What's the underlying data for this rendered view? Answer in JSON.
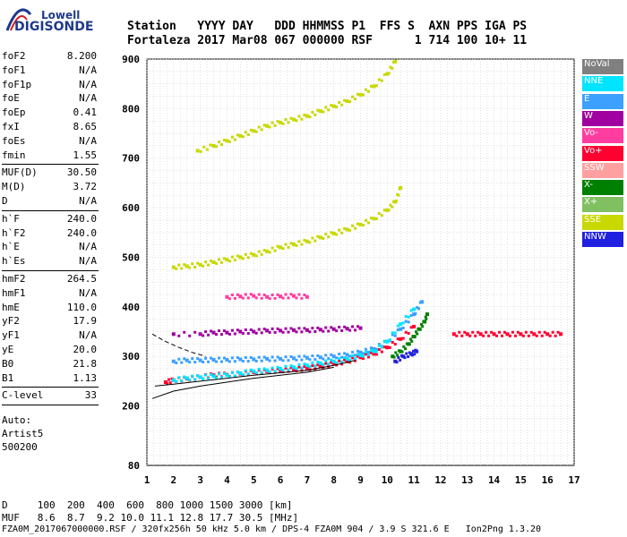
{
  "logo": {
    "line1": "Lowell",
    "line2": "DIGISONDE"
  },
  "header": {
    "line1": "Station   YYYY DAY   DDD HHMMSS P1  FFS S  AXN PPS IGA PS",
    "line2": "Fortaleza 2017 Mar08 067 000000 RSF      1 714 100 10+ 11"
  },
  "params": {
    "group1": [
      {
        "k": "foF2",
        "v": "8.200"
      },
      {
        "k": "foF1",
        "v": "N/A"
      },
      {
        "k": "foF1p",
        "v": "N/A"
      },
      {
        "k": "foE",
        "v": "N/A"
      },
      {
        "k": "foEp",
        "v": "0.41"
      },
      {
        "k": "fxI",
        "v": "8.65"
      },
      {
        "k": "foEs",
        "v": "N/A"
      },
      {
        "k": "fmin",
        "v": "1.55"
      }
    ],
    "group2": [
      {
        "k": "MUF(D)",
        "v": "30.50"
      },
      {
        "k": "M(D)",
        "v": "3.72"
      },
      {
        "k": "D",
        "v": "N/A"
      }
    ],
    "group3": [
      {
        "k": "h`F",
        "v": "240.0"
      },
      {
        "k": "h`F2",
        "v": "240.0"
      },
      {
        "k": "h`E",
        "v": "N/A"
      },
      {
        "k": "h`Es",
        "v": "N/A"
      }
    ],
    "group4": [
      {
        "k": "hmF2",
        "v": "264.5"
      },
      {
        "k": "hmF1",
        "v": "N/A"
      },
      {
        "k": "hmE",
        "v": "110.0"
      },
      {
        "k": "yF2",
        "v": "17.9"
      },
      {
        "k": "yF1",
        "v": "N/A"
      },
      {
        "k": "yE",
        "v": "20.0"
      },
      {
        "k": "B0",
        "v": "21.8"
      },
      {
        "k": "B1",
        "v": "1.13"
      }
    ],
    "group5": [
      {
        "k": "C-level",
        "v": "33"
      }
    ]
  },
  "auto": {
    "line1": "Auto:",
    "line2": "Artist5",
    "line3": "500200"
  },
  "footer": {
    "d_line": "D     100  200  400  600  800 1000 1500 3000 [km]",
    "muf_line": "MUF   8.6  8.7  9.2 10.0 11.1 12.8 17.7 30.5 [MHz]",
    "file_line": "FZA0M_2017067000000.RSF / 320fx256h 50 kHz 5.0 km / DPS-4 FZA0M 904 / 3.9 S 321.6 E   Ion2Png 1.3.20"
  },
  "legend": [
    {
      "label": "NoVal",
      "color": "#808080"
    },
    {
      "label": "NNE",
      "color": "#00e5ff"
    },
    {
      "label": "E",
      "color": "#3ca0ff"
    },
    {
      "label": "W",
      "color": "#a000a0"
    },
    {
      "label": "Vo-",
      "color": "#ff3ca0"
    },
    {
      "label": "Vo+",
      "color": "#ff0030"
    },
    {
      "label": "SSW",
      "color": "#ffa0a0"
    },
    {
      "label": "X-",
      "color": "#008000"
    },
    {
      "label": "X+",
      "color": "#80c060"
    },
    {
      "label": "SSE",
      "color": "#c8d800"
    },
    {
      "label": "NNW",
      "color": "#2020e0"
    }
  ],
  "chart_data": {
    "type": "scatter",
    "title": "",
    "xlabel": "",
    "ylabel": "",
    "xlim": [
      1,
      17
    ],
    "ylim": [
      80,
      900
    ],
    "x_ticks": [
      "1",
      "2",
      "3",
      "4",
      "5",
      "6",
      "7",
      "8",
      "9",
      "10",
      "11",
      "12",
      "13",
      "14",
      "15",
      "16",
      "17"
    ],
    "y_ticks": [
      {
        "value": 80,
        "label": "80"
      },
      {
        "value": 200,
        "label": "200"
      },
      {
        "value": 300,
        "label": "300"
      },
      {
        "value": 400,
        "label": "400"
      },
      {
        "value": 500,
        "label": "500"
      },
      {
        "value": 600,
        "label": "600"
      },
      {
        "value": 700,
        "label": "700"
      },
      {
        "value": 800,
        "label": "800"
      },
      {
        "value": 900,
        "label": "900"
      }
    ],
    "grid": true,
    "series": [
      {
        "name": "Vo+",
        "color": "#ff0030",
        "x": [
          1.7,
          2.0,
          2.5,
          3.0,
          3.5,
          4.0,
          4.5,
          5.0,
          5.5,
          6.0,
          6.5,
          7.0,
          7.5,
          8.0,
          8.5,
          9.0,
          9.5,
          10.0,
          10.5,
          11.0
        ],
        "y": [
          248,
          252,
          255,
          258,
          262,
          263,
          265,
          268,
          270,
          272,
          274,
          276,
          280,
          285,
          290,
          298,
          305,
          318,
          335,
          360
        ]
      },
      {
        "name": "E",
        "color": "#3ca0ff",
        "x": [
          2.0,
          2.5,
          3.0,
          3.5,
          4.0,
          4.5,
          5.0,
          5.5,
          6.0,
          6.5,
          7.0,
          7.5,
          8.0,
          8.5,
          9.0,
          9.5,
          10.0,
          10.5,
          11.0,
          11.3
        ],
        "y": [
          290,
          292,
          292,
          293,
          293,
          294,
          294,
          295,
          295,
          296,
          297,
          298,
          300,
          303,
          308,
          315,
          330,
          355,
          385,
          410
        ]
      },
      {
        "name": "W",
        "color": "#a000a0",
        "x": [
          2.0,
          3.0,
          3.5,
          4.0,
          4.5,
          5.0,
          5.5,
          6.0,
          6.5,
          7.0,
          7.5,
          8.0,
          8.5,
          9.0
        ],
        "y": [
          345,
          345,
          348,
          348,
          350,
          350,
          352,
          352,
          353,
          353,
          354,
          355,
          356,
          357
        ]
      },
      {
        "name": "X-",
        "color": "#008000",
        "x": [
          10.2,
          10.5,
          10.8,
          11.0,
          11.2,
          11.4,
          11.5
        ],
        "y": [
          300,
          310,
          325,
          340,
          355,
          370,
          385
        ]
      },
      {
        "name": "NNW",
        "color": "#2020e0",
        "x": [
          10.3,
          10.6,
          10.9,
          11.1
        ],
        "y": [
          290,
          300,
          305,
          310
        ]
      },
      {
        "name": "SSE",
        "color": "#c8d800",
        "x": [
          2.0,
          2.5,
          3.0,
          3.5,
          4.0,
          4.5,
          5.0,
          5.5,
          6.0,
          6.5,
          7.0,
          7.5,
          8.0,
          8.5,
          9.0,
          9.5,
          10.0,
          10.3,
          10.5
        ],
        "y": [
          480,
          482,
          485,
          490,
          495,
          500,
          505,
          512,
          520,
          526,
          532,
          540,
          548,
          556,
          566,
          578,
          595,
          612,
          640
        ]
      },
      {
        "name": "NNE",
        "color": "#00e5ff",
        "x": [
          2.0,
          2.5,
          3.0,
          3.5,
          4.0,
          4.5,
          5.0,
          5.5,
          6.0,
          6.5,
          7.0,
          7.5,
          8.0,
          8.5,
          9.0,
          9.5,
          10.0,
          10.5,
          11.0
        ],
        "y": [
          252,
          256,
          258,
          260,
          262,
          266,
          270,
          272,
          275,
          278,
          282,
          286,
          290,
          295,
          302,
          310,
          330,
          365,
          395
        ]
      },
      {
        "name": "Vo-",
        "color": "#ff3ca0",
        "x": [
          4.0,
          4.5,
          5.0,
          5.5,
          6.0,
          6.5,
          7.0
        ],
        "y": [
          420,
          421,
          422,
          420,
          421,
          422,
          420
        ]
      },
      {
        "name": "SSE (2nd hop)",
        "color": "#c8d800",
        "x": [
          2.9,
          3.5,
          4.0,
          4.5,
          5.0,
          5.5,
          6.0,
          6.5,
          7.0,
          7.5,
          8.0,
          8.5,
          9.0,
          9.5,
          10.0,
          10.3
        ],
        "y": [
          715,
          725,
          735,
          745,
          755,
          765,
          772,
          778,
          785,
          795,
          805,
          815,
          828,
          845,
          870,
          895
        ]
      },
      {
        "name": "Vo+ (far)",
        "color": "#ff0030",
        "x": [
          12.5,
          13.0,
          13.5,
          14.0,
          14.5,
          15.0,
          15.5,
          16.0,
          16.5
        ],
        "y": [
          345,
          345,
          345,
          345,
          345,
          345,
          345,
          345,
          345
        ]
      }
    ],
    "curves": [
      {
        "name": "profile",
        "color": "#000000",
        "x": [
          1.2,
          2.0,
          3.0,
          4.0,
          5.0,
          6.0,
          7.0,
          8.0
        ],
        "y": [
          215,
          230,
          240,
          248,
          256,
          262,
          268,
          278
        ]
      },
      {
        "name": "profile-dashed",
        "color": "#000000",
        "x": [
          1.2,
          1.7,
          2.2,
          2.7,
          3.2
        ],
        "y": [
          345,
          330,
          318,
          308,
          300
        ]
      },
      {
        "name": "profile-lower",
        "color": "#000000",
        "x": [
          1.3,
          2.0,
          3.0,
          4.0,
          5.0,
          6.0,
          7.0,
          8.0,
          8.8
        ],
        "y": [
          240,
          244,
          250,
          256,
          262,
          267,
          272,
          282,
          292
        ]
      }
    ]
  }
}
